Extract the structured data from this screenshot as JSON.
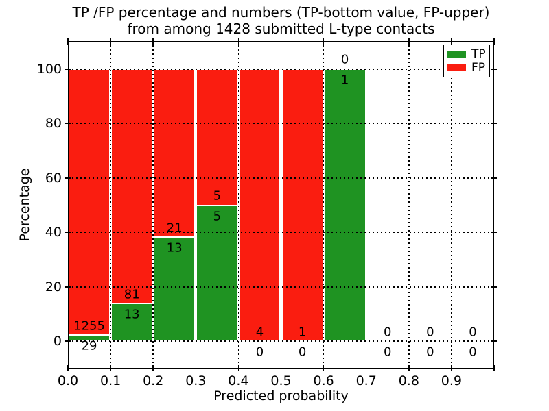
{
  "chart_data": {
    "type": "bar",
    "stacked": true,
    "title": "TP /FP percentage and numbers (TP-bottom value, FP-upper)\nfrom among 1428 submitted L-type contacts",
    "xlabel": "Predicted probability",
    "ylabel": "Percentage",
    "total_submitted_contacts": 1428,
    "annotation_scheme": "FP count shown above the TP/FP boundary, TP count shown below it",
    "categories": [
      "0.0-0.1",
      "0.1-0.2",
      "0.2-0.3",
      "0.3-0.4",
      "0.4-0.5",
      "0.5-0.6",
      "0.6-0.7",
      "0.7-0.8",
      "0.8-0.9",
      "0.9-1.0"
    ],
    "bin_centers": [
      0.05,
      0.15,
      0.25,
      0.35,
      0.45,
      0.55,
      0.65,
      0.75,
      0.85,
      0.95
    ],
    "bin_width": 0.1,
    "series": [
      {
        "name": "TP",
        "color": "#1f9322",
        "counts": [
          29,
          13,
          13,
          5,
          0,
          0,
          1,
          0,
          0,
          0
        ],
        "pct": [
          2.26,
          13.83,
          38.24,
          50.0,
          0.0,
          0.0,
          100.0,
          0.0,
          0.0,
          0.0
        ]
      },
      {
        "name": "FP",
        "color": "#fa1d10",
        "counts": [
          1255,
          81,
          21,
          5,
          4,
          1,
          0,
          0,
          0,
          0
        ],
        "pct": [
          97.74,
          86.17,
          61.76,
          50.0,
          100.0,
          100.0,
          0.0,
          0.0,
          0.0,
          0.0
        ]
      }
    ],
    "x_ticks": [
      "0.0",
      "0.1",
      "0.2",
      "0.3",
      "0.4",
      "0.5",
      "0.6",
      "0.7",
      "0.8",
      "0.9"
    ],
    "y_ticks": [
      "0",
      "20",
      "40",
      "60",
      "80",
      "100"
    ],
    "xlim": [
      0.0,
      1.0
    ],
    "ylim": [
      -10,
      110.3
    ],
    "grid": {
      "on": true,
      "style": "dotted",
      "color": "#000000",
      "above_bars": true
    },
    "bar_edge_color": "#ffffff",
    "legend": {
      "position": "upper right",
      "items": [
        "TP",
        "FP"
      ]
    }
  }
}
